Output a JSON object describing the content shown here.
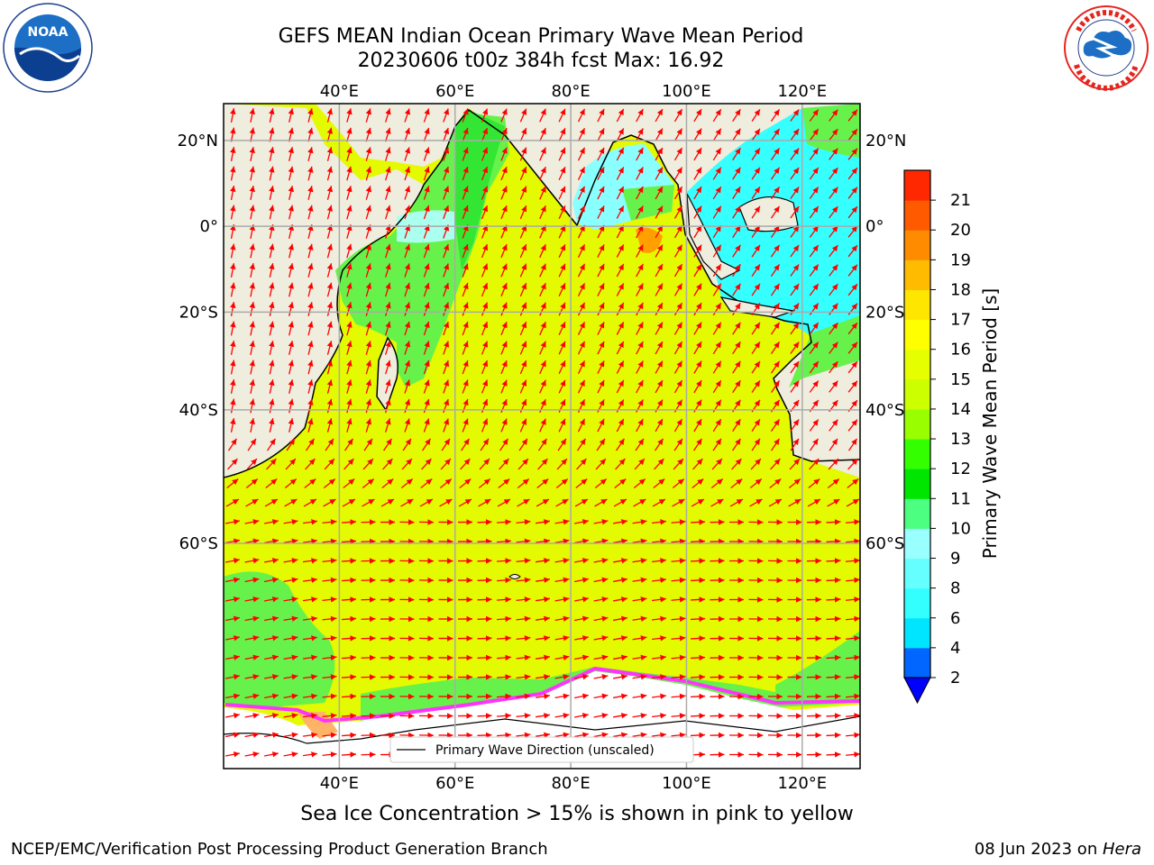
{
  "header": {
    "title_line1": "GEFS MEAN Indian Ocean Primary Wave Mean Period",
    "title_line2": "20230606 t00z 384h fcst   Max: 16.92"
  },
  "logos": {
    "left": {
      "name": "noaa-logo",
      "text": "NOAA"
    },
    "right": {
      "name": "nws-logo",
      "text": "NATIONAL WEATHER SERVICE"
    }
  },
  "map": {
    "lon_ticks": [
      "40°E",
      "60°E",
      "80°E",
      "100°E",
      "120°E"
    ],
    "lat_ticks": [
      "20°N",
      "0°",
      "20°S",
      "40°S",
      "60°S"
    ],
    "lon_values": [
      40,
      60,
      80,
      100,
      120
    ],
    "lat_values": [
      20,
      0,
      -20,
      -40,
      -60
    ],
    "lon_range": [
      20,
      130
    ],
    "lat_range": [
      -78,
      28
    ],
    "grid": true,
    "colors": {
      "land": "#efedde",
      "ocean_main": "#e4fa00",
      "ocean_green": "#66f24a",
      "ocean_cyan": "#36ffff",
      "ocean_lightcyan": "#8affff",
      "ocean_orange": "#ff9f00",
      "ice_pink": "#ff33ff",
      "arrow": "#ff0000"
    }
  },
  "legend": {
    "label": "Primary Wave Direction (unscaled)"
  },
  "colorbar": {
    "label": "Primary Wave Mean Period [s]",
    "ticks": [
      "2",
      "4",
      "6",
      "7",
      "8",
      "9",
      "10",
      "11",
      "12",
      "13",
      "14",
      "15",
      "16",
      "17",
      "18",
      "19",
      "20",
      "21"
    ],
    "colors": [
      "#0066ff",
      "#00e5ff",
      "#33ffff",
      "#66ffff",
      "#99ffff",
      "#4dff80",
      "#00e600",
      "#33ff00",
      "#99ff00",
      "#ccff00",
      "#e6ff00",
      "#ffff00",
      "#ffe600",
      "#ffbb00",
      "#ff8c00",
      "#ff5a00",
      "#ff2800"
    ],
    "extend_color": "#0000ff"
  },
  "footer": {
    "note": "Sea Ice Concentration > 15% is shown in pink to yellow",
    "left": "NCEP/EMC/Verification Post Processing Product Generation Branch",
    "right_date": "08 Jun 2023 on ",
    "right_host": "Hera"
  }
}
